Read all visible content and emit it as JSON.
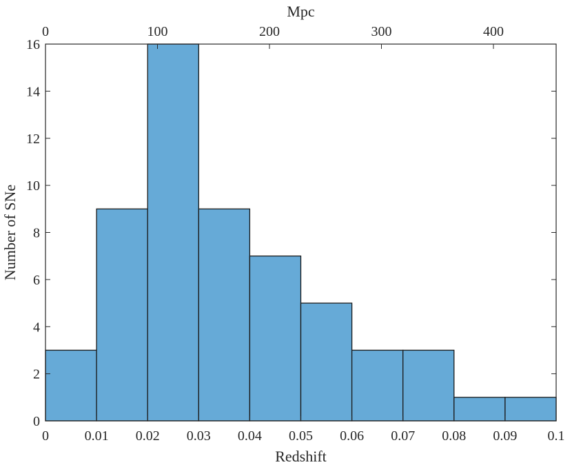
{
  "chart_data": {
    "type": "bar",
    "xlabel": "Redshift",
    "ylabel": "Number of SNe",
    "x2label": "Mpc",
    "bin_edges": [
      0,
      0.01,
      0.02,
      0.03,
      0.04,
      0.05,
      0.06,
      0.07,
      0.08,
      0.09,
      0.1
    ],
    "values": [
      3,
      9,
      16,
      9,
      7,
      5,
      3,
      3,
      1,
      1
    ],
    "xlim": [
      0,
      0.1
    ],
    "ylim": [
      0,
      16
    ],
    "x2lim": [
      0,
      456
    ],
    "x_ticks": [
      "0",
      "0.01",
      "0.02",
      "0.03",
      "0.04",
      "0.05",
      "0.06",
      "0.07",
      "0.08",
      "0.09",
      "0.1"
    ],
    "y_ticks": [
      "0",
      "2",
      "4",
      "6",
      "8",
      "10",
      "12",
      "14",
      "16"
    ],
    "x2_ticks": [
      "0",
      "100",
      "200",
      "300",
      "400"
    ],
    "grid": false,
    "legend": "none",
    "bar_color": "#66aad7",
    "edge_color": "#1a1a1a"
  }
}
